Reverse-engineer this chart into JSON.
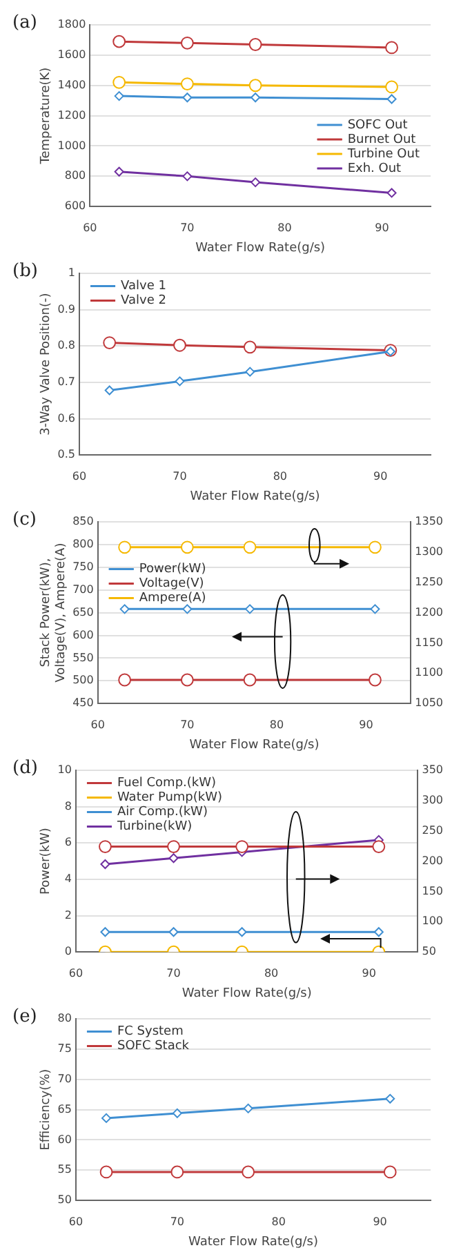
{
  "chart_data": [
    {
      "type": "line",
      "title": "(a)",
      "xlabel": "Water Flow Rate(g/s)",
      "ylabel": "Temperature(K)",
      "x": [
        63,
        70,
        77,
        91
      ],
      "xlim": [
        60,
        95
      ],
      "xticks": [
        60,
        70,
        80,
        90
      ],
      "ylim": [
        600,
        1800
      ],
      "yticks": [
        600,
        800,
        1000,
        1200,
        1400,
        1600,
        1800
      ],
      "grid": "y",
      "legend": "bottom right",
      "series": [
        {
          "name": "SOFC Out",
          "color": "#3f8fd2",
          "marker": "diamond",
          "values": [
            1330,
            1320,
            1320,
            1310
          ]
        },
        {
          "name": "Burnet Out",
          "color": "#c0393b",
          "marker": "circle",
          "values": [
            1690,
            1680,
            1670,
            1650
          ]
        },
        {
          "name": "Turbine Out",
          "color": "#f5b800",
          "marker": "circle",
          "values": [
            1420,
            1410,
            1400,
            1390
          ]
        },
        {
          "name": "Exh. Out",
          "color": "#7030a0",
          "marker": "diamond",
          "values": [
            830,
            800,
            760,
            690
          ]
        }
      ]
    },
    {
      "type": "line",
      "title": "(b)",
      "xlabel": "Water Flow Rate(g/s)",
      "ylabel": "3-Way Valve Position(-)",
      "x": [
        63,
        70,
        77,
        91
      ],
      "xlim": [
        60,
        95
      ],
      "xticks": [
        60,
        70,
        80,
        90
      ],
      "ylim": [
        0.5,
        1
      ],
      "yticks": [
        0.5,
        0.6,
        0.7,
        0.8,
        0.9,
        1
      ],
      "grid": "y",
      "legend": "top left",
      "series": [
        {
          "name": "Valve 1",
          "color": "#3f8fd2",
          "marker": "diamond",
          "values": [
            0.678,
            0.703,
            0.729,
            0.785
          ]
        },
        {
          "name": "Valve 2",
          "color": "#c0393b",
          "marker": "circle",
          "values": [
            0.809,
            0.802,
            0.797,
            0.788
          ]
        }
      ]
    },
    {
      "type": "line",
      "title": "(c)",
      "xlabel": "Water Flow Rate(g/s)",
      "ylabel": "Stack Power(kW), Voltage(V), Ampere(A)",
      "x": [
        63,
        70,
        77,
        91
      ],
      "xlim": [
        60,
        95
      ],
      "xticks": [
        60,
        70,
        80,
        90
      ],
      "ylim": [
        450,
        850
      ],
      "yticks": [
        450,
        500,
        550,
        600,
        650,
        700,
        750,
        800,
        850
      ],
      "y2lim": [
        1050,
        1350
      ],
      "y2ticks": [
        1050,
        1100,
        1150,
        1200,
        1250,
        1300,
        1350
      ],
      "grid": "y",
      "legend": "left",
      "series": [
        {
          "name": "Power(kW)",
          "color": "#3f8fd2",
          "marker": "diamond",
          "values": [
            658,
            658,
            658,
            658
          ]
        },
        {
          "name": "Voltage(V)",
          "color": "#c0393b",
          "marker": "circle",
          "values": [
            502,
            502,
            502,
            502
          ]
        },
        {
          "name": "Ampere(A)",
          "color": "#f5b800",
          "marker": "circle",
          "axis": "y2",
          "values": [
            1308,
            1308,
            1308,
            1308
          ]
        }
      ]
    },
    {
      "type": "line",
      "title": "(d)",
      "xlabel": "Water Flow Rate(g/s)",
      "ylabel": "Power(kW)",
      "x": [
        63,
        70,
        77,
        91
      ],
      "xlim": [
        60,
        95
      ],
      "xticks": [
        60,
        70,
        80,
        90
      ],
      "ylim": [
        0,
        10
      ],
      "yticks": [
        0,
        2,
        4,
        6,
        8,
        10
      ],
      "y2lim": [
        50,
        350
      ],
      "y2ticks": [
        50,
        100,
        150,
        200,
        250,
        300,
        350
      ],
      "grid": "y",
      "legend": "top left",
      "series": [
        {
          "name": "Fuel Comp.(kW)",
          "color": "#c0393b",
          "marker": "circle",
          "axis": "y2",
          "values": [
            224,
            224,
            224,
            224
          ]
        },
        {
          "name": "Water Pump(kW)",
          "color": "#f5b800",
          "marker": "circle",
          "values": [
            0,
            0,
            0,
            0
          ]
        },
        {
          "name": "Air Comp.(kW)",
          "color": "#3f8fd2",
          "marker": "diamond",
          "axis": "y2",
          "values": [
            83,
            83,
            83,
            83
          ]
        },
        {
          "name": "Turbine(kW)",
          "color": "#7030a0",
          "marker": "diamond",
          "axis": "y2",
          "values": [
            195,
            205,
            215,
            235
          ]
        }
      ]
    },
    {
      "type": "line",
      "title": "(e)",
      "xlabel": "Water Flow Rate(g/s)",
      "ylabel": "Efficiency(%)",
      "x": [
        63,
        70,
        77,
        91
      ],
      "xlim": [
        60,
        95
      ],
      "xticks": [
        60,
        70,
        80,
        90
      ],
      "ylim": [
        50,
        80
      ],
      "yticks": [
        50,
        55,
        60,
        65,
        70,
        75,
        80
      ],
      "grid": "y",
      "legend": "top left",
      "series": [
        {
          "name": "FC System",
          "color": "#3f8fd2",
          "marker": "diamond",
          "values": [
            63.6,
            64.4,
            65.2,
            66.8
          ]
        },
        {
          "name": "SOFC Stack",
          "color": "#c0393b",
          "marker": "circle",
          "values": [
            54.7,
            54.7,
            54.7,
            54.7
          ]
        }
      ]
    }
  ]
}
